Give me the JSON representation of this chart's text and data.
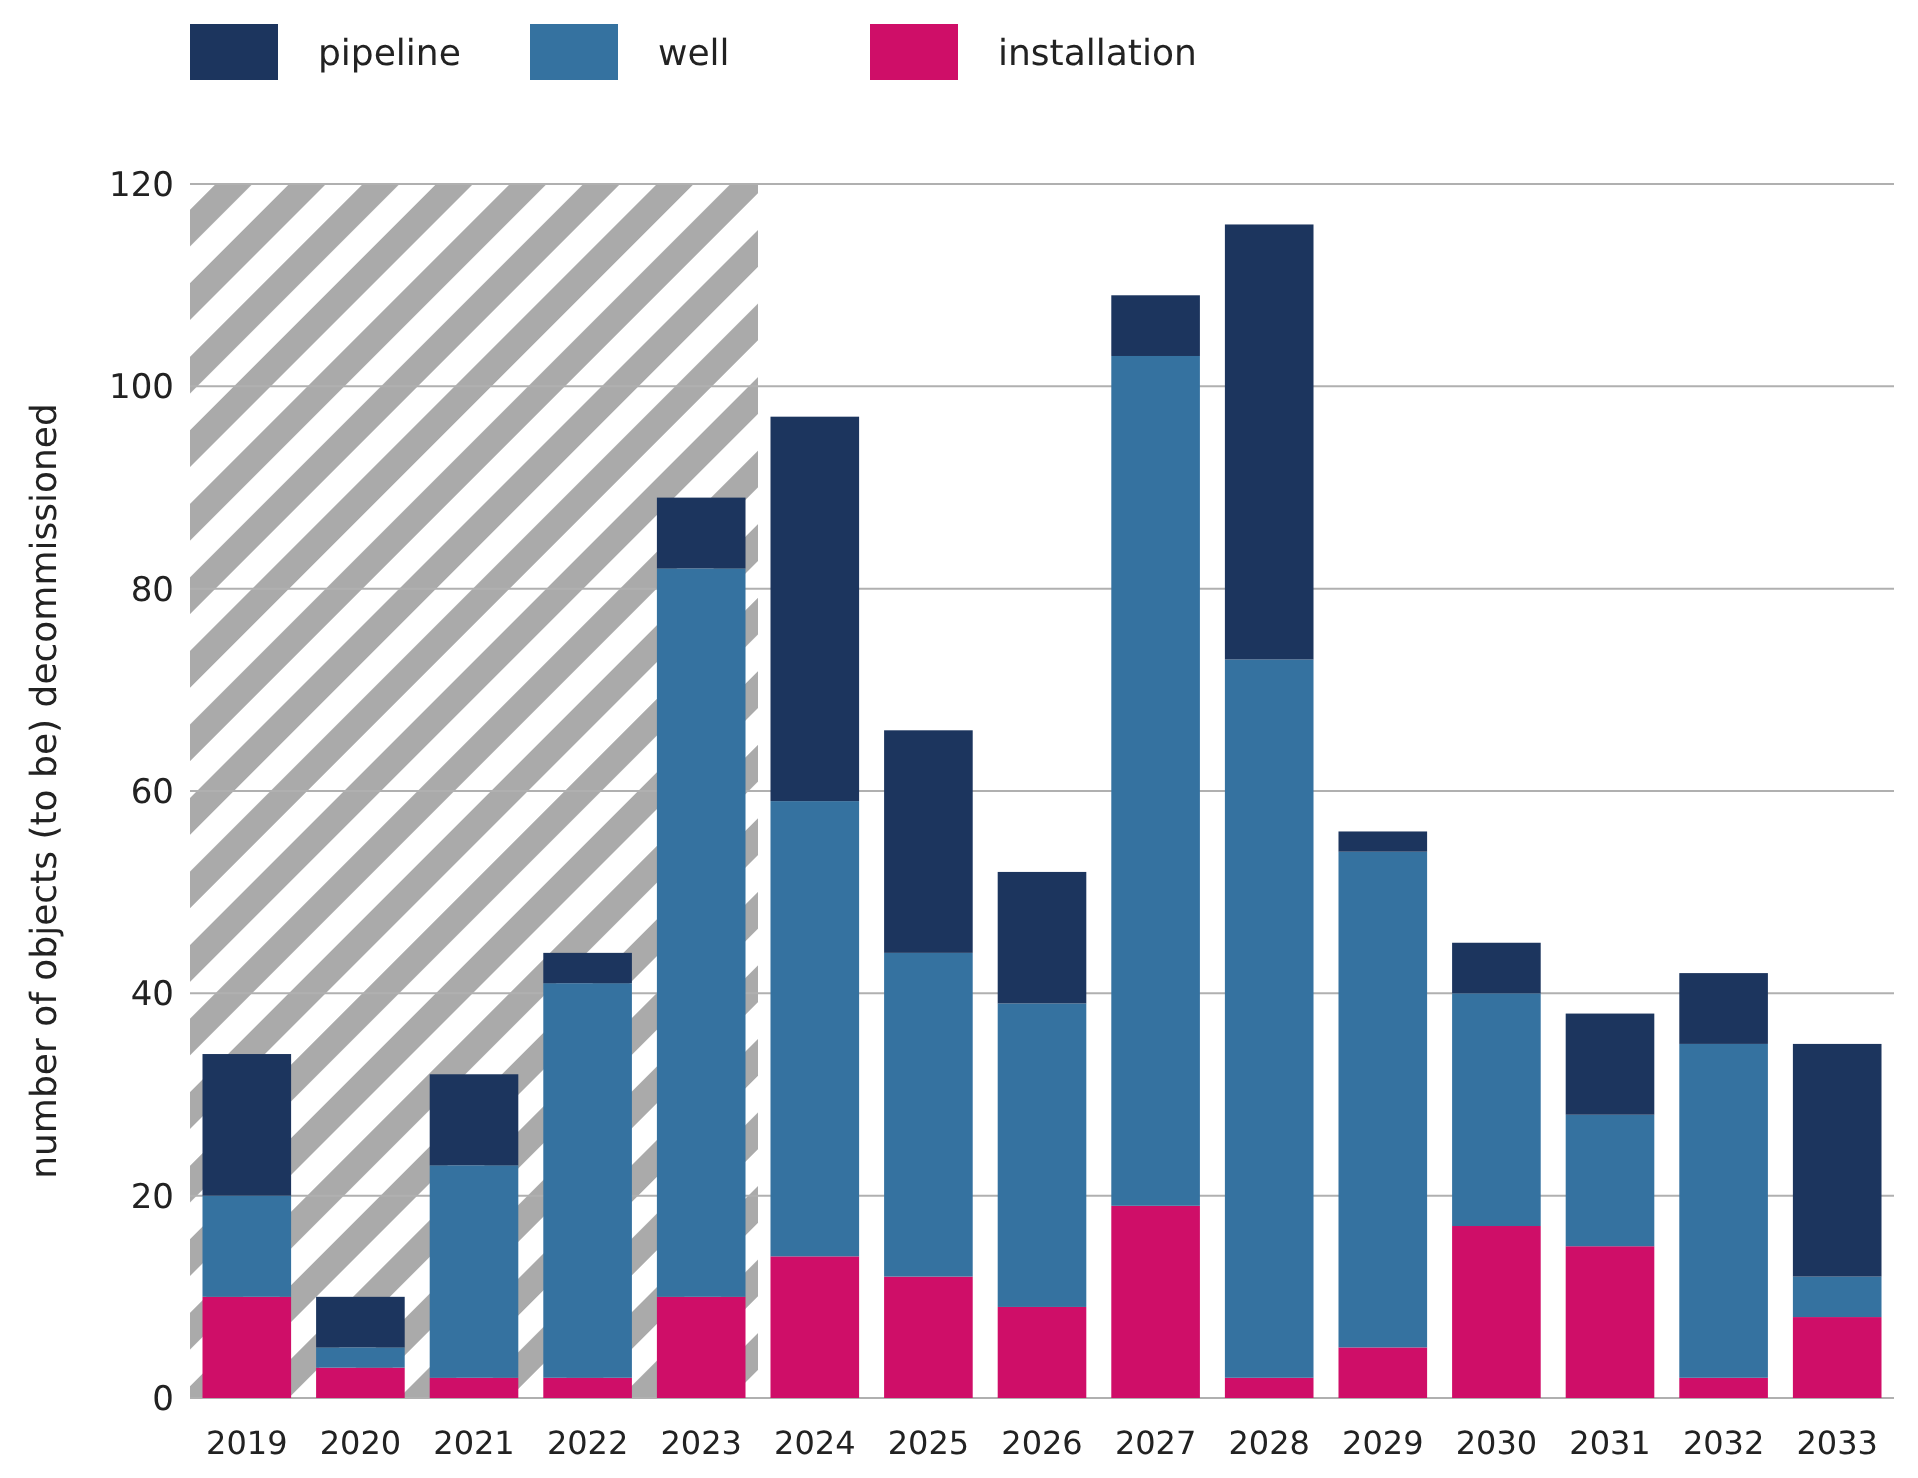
{
  "chart_data": {
    "type": "bar",
    "stacked": true,
    "ylabel": "number of objects (to be) decommissioned",
    "categories": [
      "2019",
      "2020",
      "2021",
      "2022",
      "2023",
      "2024",
      "2025",
      "2026",
      "2027",
      "2028",
      "2029",
      "2030",
      "2031",
      "2032",
      "2033"
    ],
    "series": [
      {
        "name": "installation",
        "color": "#cf0e68",
        "values": [
          10,
          3,
          2,
          2,
          10,
          14,
          12,
          9,
          19,
          2,
          5,
          17,
          15,
          2,
          8
        ]
      },
      {
        "name": "well",
        "color": "#3572a0",
        "values": [
          10,
          2,
          21,
          39,
          72,
          45,
          32,
          30,
          84,
          71,
          49,
          23,
          13,
          33,
          4
        ]
      },
      {
        "name": "pipeline",
        "color": "#1c355e",
        "values": [
          14,
          5,
          9,
          3,
          7,
          38,
          22,
          13,
          6,
          43,
          2,
          5,
          10,
          7,
          23
        ]
      }
    ],
    "ylim": [
      0,
      120
    ],
    "yticks": [
      0,
      20,
      40,
      60,
      80,
      100,
      120
    ],
    "grid": "y",
    "legend": "top left",
    "bands": [
      {
        "axis": "x",
        "from": "2019",
        "to": "2023",
        "color": "#aaaaaa"
      }
    ]
  }
}
